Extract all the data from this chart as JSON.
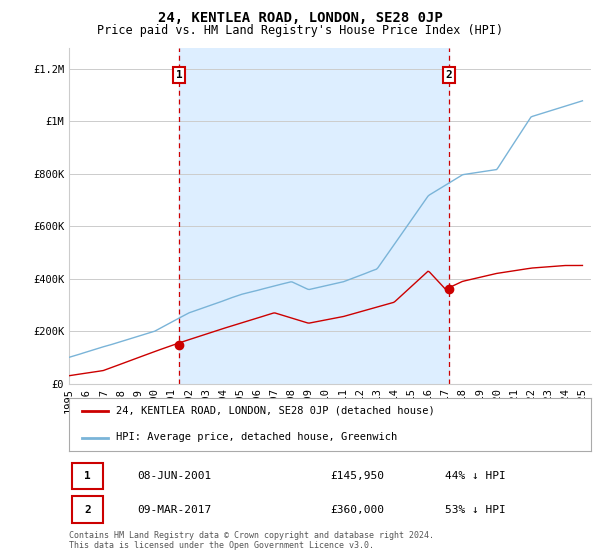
{
  "title": "24, KENTLEA ROAD, LONDON, SE28 0JP",
  "subtitle": "Price paid vs. HM Land Registry's House Price Index (HPI)",
  "ylabel_ticks": [
    "£0",
    "£200K",
    "£400K",
    "£600K",
    "£800K",
    "£1M",
    "£1.2M"
  ],
  "ytick_values": [
    0,
    200000,
    400000,
    600000,
    800000,
    1000000,
    1200000
  ],
  "ylim": [
    0,
    1280000
  ],
  "xlim_start": 1995.0,
  "xlim_end": 2025.5,
  "hpi_color": "#7ab4d8",
  "hpi_fill_color": "#ddeeff",
  "price_color": "#cc0000",
  "marker1_date_x": 2001.44,
  "marker1_y": 145950,
  "marker2_date_x": 2017.19,
  "marker2_y": 360000,
  "vline1_x": 2001.44,
  "vline2_x": 2017.19,
  "legend_line1": "24, KENTLEA ROAD, LONDON, SE28 0JP (detached house)",
  "legend_line2": "HPI: Average price, detached house, Greenwich",
  "annotation1_label": "1",
  "annotation2_label": "2",
  "table_row1": [
    "1",
    "08-JUN-2001",
    "£145,950",
    "44% ↓ HPI"
  ],
  "table_row2": [
    "2",
    "09-MAR-2017",
    "£360,000",
    "53% ↓ HPI"
  ],
  "footer": "Contains HM Land Registry data © Crown copyright and database right 2024.\nThis data is licensed under the Open Government Licence v3.0.",
  "bg_color": "#ffffff",
  "grid_color": "#cccccc",
  "title_fontsize": 10,
  "subtitle_fontsize": 8.5,
  "tick_fontsize": 7.5
}
